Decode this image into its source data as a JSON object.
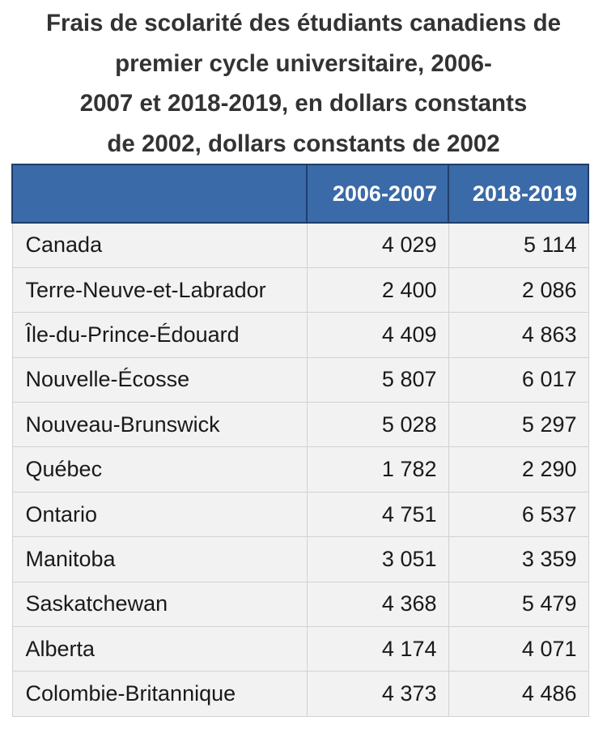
{
  "title_lines": [
    "Frais de scolarité des étudiants canadiens de",
    "premier cycle universitaire, 2006-",
    "2007 et 2018-2019, en dollars constants",
    "de 2002, dollars constants de 2002"
  ],
  "chart_data": {
    "type": "table",
    "title": "Frais de scolarité des étudiants canadiens de premier cycle universitaire, 2006-2007 et 2018-2019, en dollars constants de 2002, dollars constants de 2002",
    "columns": [
      "",
      "2006-2007",
      "2018-2019"
    ],
    "rows": [
      {
        "label": "Canada",
        "v2006": "4 029",
        "v2018": "5 114"
      },
      {
        "label": "Terre-Neuve-et-Labrador",
        "v2006": "2 400",
        "v2018": "2 086"
      },
      {
        "label": "Île-du-Prince-Édouard",
        "v2006": "4 409",
        "v2018": "4 863"
      },
      {
        "label": "Nouvelle-Écosse",
        "v2006": "5 807",
        "v2018": "6 017"
      },
      {
        "label": "Nouveau-Brunswick",
        "v2006": "5 028",
        "v2018": "5 297"
      },
      {
        "label": "Québec",
        "v2006": "1 782",
        "v2018": "2 290"
      },
      {
        "label": "Ontario",
        "v2006": "4 751",
        "v2018": "6 537"
      },
      {
        "label": "Manitoba",
        "v2006": "3 051",
        "v2018": "3 359"
      },
      {
        "label": "Saskatchewan",
        "v2006": "4 368",
        "v2018": "5 479"
      },
      {
        "label": "Alberta",
        "v2006": "4 174",
        "v2018": "4 071"
      },
      {
        "label": "Colombie-Britannique",
        "v2006": "4 373",
        "v2018": "4 486"
      }
    ]
  },
  "colors": {
    "header_bg": "#3a6aa8",
    "header_border": "#1f3f6b",
    "cell_bg": "#f2f2f2",
    "cell_border": "#d2d2d2"
  }
}
